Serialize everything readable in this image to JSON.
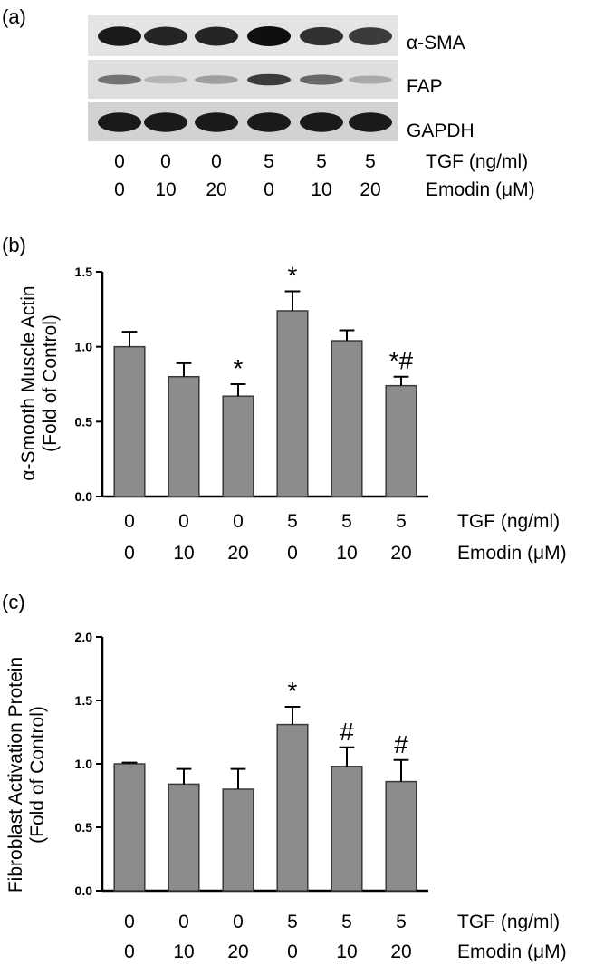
{
  "panels": {
    "a": {
      "label": "(a)",
      "blots": [
        {
          "name": "α-SMA",
          "intensity": [
            0.95,
            0.9,
            0.9,
            1.0,
            0.85,
            0.8
          ]
        },
        {
          "name": "FAP",
          "intensity": [
            0.55,
            0.25,
            0.35,
            0.8,
            0.6,
            0.3
          ]
        },
        {
          "name": "GAPDH",
          "intensity": [
            0.95,
            0.95,
            0.95,
            0.95,
            0.95,
            0.95
          ]
        }
      ],
      "conditions": {
        "tgf": [
          "0",
          "0",
          "0",
          "5",
          "5",
          "5"
        ],
        "emodin": [
          "0",
          "10",
          "20",
          "0",
          "10",
          "20"
        ],
        "tgf_label": "TGF (ng/ml)",
        "emodin_label": "Emodin (μM)"
      }
    },
    "b": {
      "label": "(b)"
    },
    "c": {
      "label": "(c)"
    }
  },
  "chart_data": [
    {
      "type": "bar",
      "panel": "b",
      "ylabel_line1": "α-Smooth Muscle Actin",
      "ylabel_line2": "(Fold of Control)",
      "ylim": [
        0,
        1.5
      ],
      "yticks": [
        "0.0",
        "0.5",
        "1.0",
        "1.5"
      ],
      "tgf": [
        "0",
        "0",
        "0",
        "5",
        "5",
        "5"
      ],
      "emodin": [
        "0",
        "10",
        "20",
        "0",
        "10",
        "20"
      ],
      "tgf_label": "TGF (ng/ml)",
      "emodin_label": "Emodin (μM)",
      "values": [
        1.0,
        0.8,
        0.67,
        1.24,
        1.04,
        0.74
      ],
      "errors": [
        0.1,
        0.09,
        0.08,
        0.13,
        0.07,
        0.06
      ],
      "annotations": [
        "",
        "",
        "*",
        "*",
        "",
        "*#"
      ],
      "bar_color": "#8c8c8c",
      "grid": false
    },
    {
      "type": "bar",
      "panel": "c",
      "ylabel_line1": "Fibroblast Activation Protein",
      "ylabel_line2": "(Fold of Control)",
      "ylim": [
        0,
        2.0
      ],
      "yticks": [
        "0.0",
        "0.5",
        "1.0",
        "1.5",
        "2.0"
      ],
      "tgf": [
        "0",
        "0",
        "0",
        "5",
        "5",
        "5"
      ],
      "emodin": [
        "0",
        "10",
        "20",
        "0",
        "10",
        "20"
      ],
      "tgf_label": "TGF (ng/ml)",
      "emodin_label": "Emodin (μM)",
      "values": [
        1.0,
        0.84,
        0.8,
        1.31,
        0.98,
        0.86
      ],
      "errors": [
        0.01,
        0.12,
        0.16,
        0.14,
        0.15,
        0.17
      ],
      "annotations": [
        "",
        "",
        "",
        "*",
        "#",
        "#"
      ],
      "bar_color": "#8c8c8c",
      "grid": false
    }
  ]
}
